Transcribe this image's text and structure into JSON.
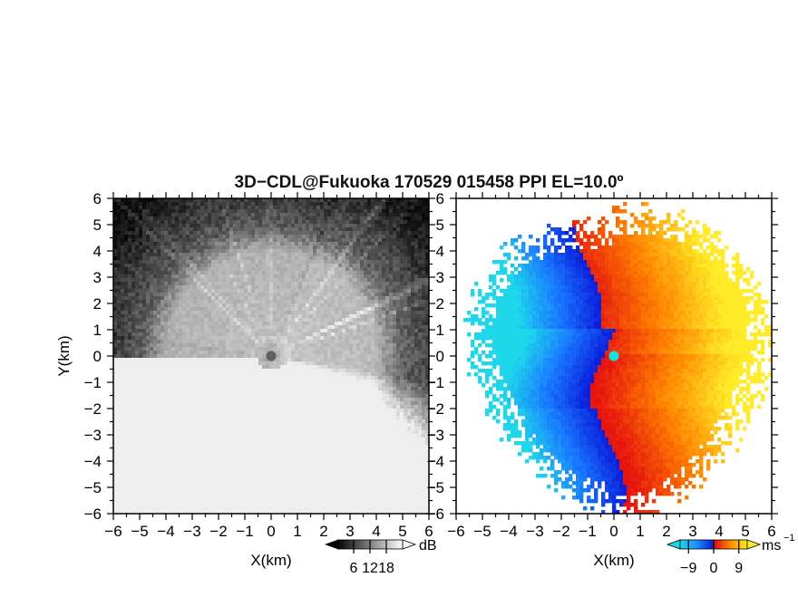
{
  "figure": {
    "title": "3D−CDL@Fukuoka 170529 015458 PPI EL=10.0º"
  },
  "chart_data": [
    {
      "type": "heatmap",
      "title": "",
      "variable": "reflectivity",
      "xlabel": "X(km)",
      "ylabel": "Y(km)",
      "xlim": [
        -6,
        6
      ],
      "ylim": [
        -6,
        6
      ],
      "xticks": [
        "−6",
        "−5",
        "−4",
        "−3",
        "−2",
        "−1",
        "0",
        "1",
        "2",
        "3",
        "4",
        "5",
        "6"
      ],
      "yticks": [
        "−6",
        "−5",
        "−4",
        "−3",
        "−2",
        "−1",
        "0",
        "1",
        "2",
        "3",
        "4",
        "5",
        "6"
      ],
      "colormap": "grayscale",
      "colorbar": {
        "unit": "dB",
        "range": [
          0,
          24
        ],
        "ticks": [
          "6",
          "12",
          "18"
        ]
      },
      "pattern": {
        "center_km": [
          0,
          0
        ],
        "bright_ring_inner_radius_km": 0.8,
        "bright_ring_outer_radius_km": 4.0,
        "signal_fade_radius_km": 5.0,
        "radial_streaks": true,
        "center_marker_color": "#606060"
      }
    },
    {
      "type": "heatmap",
      "title": "",
      "variable": "Doppler velocity",
      "xlabel": "X(km)",
      "ylabel": "",
      "xlim": [
        -6,
        6
      ],
      "ylim": [
        -6,
        6
      ],
      "xticks": [
        "−6",
        "−5",
        "−4",
        "−3",
        "−2",
        "−1",
        "0",
        "1",
        "2",
        "3",
        "4",
        "5",
        "6"
      ],
      "yticks": [
        "−6",
        "−5",
        "−4",
        "−3",
        "−2",
        "−1",
        "0",
        "1",
        "2",
        "3",
        "4",
        "5",
        "6"
      ],
      "colormap": "cyan-blue-red-orange-yellow",
      "colorbar": {
        "unit": "ms",
        "unit_exponent": "−1",
        "range": [
          -12,
          12
        ],
        "ticks": [
          "−9",
          "0",
          "9"
        ]
      },
      "pattern": {
        "negative_velocity_side": "west (blue/cyan)",
        "positive_velocity_side": "east (red/orange/yellow)",
        "coverage_radius_km": 6,
        "center_marker_color": "#19e0e0"
      }
    }
  ]
}
